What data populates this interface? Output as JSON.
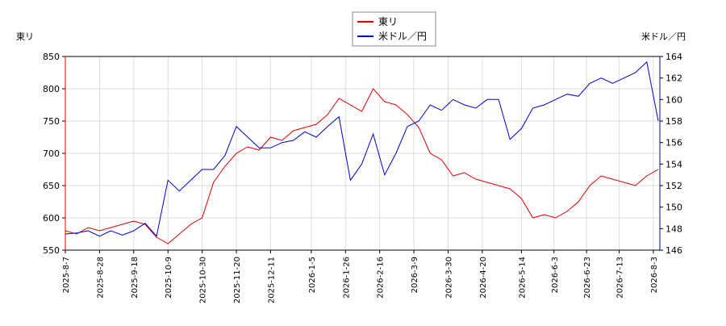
{
  "chart_data": {
    "type": "line",
    "y_label": "東リ",
    "y2_label": "米ドル／円",
    "x": [
      "2025-8-7",
      "2025-8-14",
      "2025-8-21",
      "2025-8-28",
      "2025-9-4",
      "2025-9-11",
      "2025-9-18",
      "2025-9-25",
      "2025-10-2",
      "2025-10-9",
      "2025-10-16",
      "2025-10-23",
      "2025-10-30",
      "2025-11-6",
      "2025-11-13",
      "2025-11-20",
      "2025-11-27",
      "2025-12-4",
      "2025-12-11",
      "2025-12-18",
      "2025-12-25",
      "2026-1-1",
      "2026-1-8",
      "2026-1-15",
      "2026-1-22",
      "2026-1-29",
      "2026-2-5",
      "2026-2-12",
      "2026-2-19",
      "2026-2-26",
      "2026-3-5",
      "2026-3-12",
      "2026-3-19",
      "2026-3-26",
      "2026-4-2",
      "2026-4-9",
      "2026-4-16",
      "2026-4-23",
      "2026-4-30",
      "2026-5-7",
      "2026-5-14",
      "2026-5-21",
      "2026-5-28",
      "2026-6-4",
      "2026-6-11",
      "2026-6-18",
      "2026-6-25",
      "2026-7-2",
      "2026-7-9",
      "2026-7-16",
      "2026-7-23",
      "2026-7-30",
      "2026-8-6"
    ],
    "series": [
      {
        "name": "東リ",
        "color": "#dd0000",
        "values": [
          580,
          575,
          585,
          580,
          585,
          590,
          595,
          590,
          570,
          560,
          575,
          590,
          600,
          655,
          680,
          700,
          710,
          705,
          725,
          720,
          735,
          740,
          745,
          760,
          785,
          775,
          765,
          800,
          780,
          775,
          760,
          740,
          700,
          690,
          665,
          670,
          660,
          655,
          650,
          645,
          630,
          600,
          605,
          600,
          610,
          625,
          650,
          665,
          660,
          655,
          650,
          665,
          675
        ]
      },
      {
        "name": "米ドル／円",
        "color": "#0000cc",
        "axis": "y2",
        "values": [
          147.5,
          147.6,
          147.8,
          147.3,
          147.8,
          147.4,
          147.8,
          148.5,
          147.3,
          152.5,
          151.5,
          152.5,
          153.5,
          153.5,
          154.8,
          157.5,
          156.5,
          155.5,
          155.5,
          156,
          156.2,
          157,
          156.5,
          157.5,
          158.4,
          152.5,
          154,
          156.8,
          153,
          155,
          157.5,
          158,
          159.5,
          159,
          160,
          159.5,
          159.2,
          160,
          160,
          156.3,
          157.3,
          159.2,
          159.5,
          160,
          160.5,
          160.3,
          161.5,
          162,
          161.5,
          162,
          162.5,
          163.5,
          158
        ]
      }
    ],
    "xlim": [
      "2025-8-7",
      "2026-8-7"
    ],
    "xticks": [
      "2025-8-7",
      "2025-8-28",
      "2025-9-18",
      "2025-10-9",
      "2025-10-30",
      "2025-11-20",
      "2025-12-11",
      "2026-1-5",
      "2026-1-26",
      "2026-2-16",
      "2026-3-9",
      "2026-3-30",
      "2026-4-20",
      "2026-5-14",
      "2026-6-3",
      "2026-6-23",
      "2026-7-13",
      "2026-8-3"
    ],
    "ylim": [
      550,
      850
    ],
    "yticks": [
      550,
      600,
      650,
      700,
      750,
      800,
      850
    ],
    "y2lim": [
      146,
      164
    ],
    "y2ticks": [
      146,
      148,
      150,
      152,
      154,
      156,
      158,
      160,
      162,
      164
    ],
    "grid": true
  }
}
